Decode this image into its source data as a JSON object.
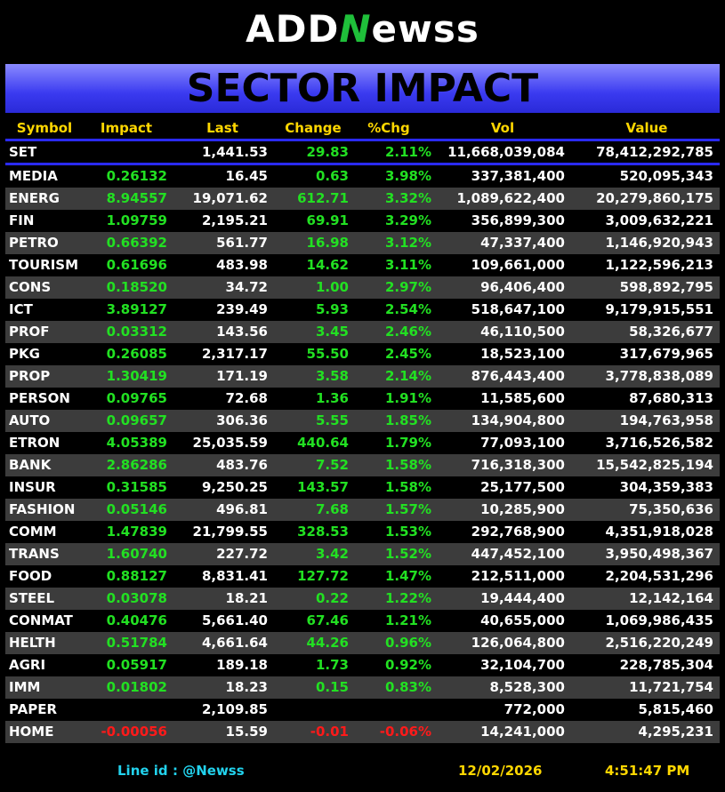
{
  "logo": {
    "prefix": "ADD",
    "mark": "N",
    "suffix": "ewss"
  },
  "banner": "SECTOR IMPACT",
  "columns": [
    "Symbol",
    "Impact",
    "Last",
    "Change",
    "%Chg",
    "Vol",
    "Value"
  ],
  "index_row": [
    "SET",
    null,
    "1,441.53",
    "29.83",
    "2.11%",
    "11,668,039,084",
    "78,412,292,785"
  ],
  "rows": [
    [
      "MEDIA",
      "0.26132",
      "16.45",
      "0.63",
      "3.98%",
      "337,381,400",
      "520,095,343"
    ],
    [
      "ENERG",
      "8.94557",
      "19,071.62",
      "612.71",
      "3.32%",
      "1,089,622,400",
      "20,279,860,175"
    ],
    [
      "FIN",
      "1.09759",
      "2,195.21",
      "69.91",
      "3.29%",
      "356,899,300",
      "3,009,632,221"
    ],
    [
      "PETRO",
      "0.66392",
      "561.77",
      "16.98",
      "3.12%",
      "47,337,400",
      "1,146,920,943"
    ],
    [
      "TOURISM",
      "0.61696",
      "483.98",
      "14.62",
      "3.11%",
      "109,661,000",
      "1,122,596,213"
    ],
    [
      "CONS",
      "0.18520",
      "34.72",
      "1.00",
      "2.97%",
      "96,406,400",
      "598,892,795"
    ],
    [
      "ICT",
      "3.89127",
      "239.49",
      "5.93",
      "2.54%",
      "518,647,100",
      "9,179,915,551"
    ],
    [
      "PROF",
      "0.03312",
      "143.56",
      "3.45",
      "2.46%",
      "46,110,500",
      "58,326,677"
    ],
    [
      "PKG",
      "0.26085",
      "2,317.17",
      "55.50",
      "2.45%",
      "18,523,100",
      "317,679,965"
    ],
    [
      "PROP",
      "1.30419",
      "171.19",
      "3.58",
      "2.14%",
      "876,443,400",
      "3,778,838,089"
    ],
    [
      "PERSON",
      "0.09765",
      "72.68",
      "1.36",
      "1.91%",
      "11,585,600",
      "87,680,313"
    ],
    [
      "AUTO",
      "0.09657",
      "306.36",
      "5.55",
      "1.85%",
      "134,904,800",
      "194,763,958"
    ],
    [
      "ETRON",
      "4.05389",
      "25,035.59",
      "440.64",
      "1.79%",
      "77,093,100",
      "3,716,526,582"
    ],
    [
      "BANK",
      "2.86286",
      "483.76",
      "7.52",
      "1.58%",
      "716,318,300",
      "15,542,825,194"
    ],
    [
      "INSUR",
      "0.31585",
      "9,250.25",
      "143.57",
      "1.58%",
      "25,177,500",
      "304,359,383"
    ],
    [
      "FASHION",
      "0.05146",
      "496.81",
      "7.68",
      "1.57%",
      "10,285,900",
      "75,350,636"
    ],
    [
      "COMM",
      "1.47839",
      "21,799.55",
      "328.53",
      "1.53%",
      "292,768,900",
      "4,351,918,028"
    ],
    [
      "TRANS",
      "1.60740",
      "227.72",
      "3.42",
      "1.52%",
      "447,452,100",
      "3,950,498,367"
    ],
    [
      "FOOD",
      "0.88127",
      "8,831.41",
      "127.72",
      "1.47%",
      "212,511,000",
      "2,204,531,296"
    ],
    [
      "STEEL",
      "0.03078",
      "18.21",
      "0.22",
      "1.22%",
      "19,444,400",
      "12,142,164"
    ],
    [
      "CONMAT",
      "0.40476",
      "5,661.40",
      "67.46",
      "1.21%",
      "40,655,000",
      "1,069,986,435"
    ],
    [
      "HELTH",
      "0.51784",
      "4,661.64",
      "44.26",
      "0.96%",
      "126,064,800",
      "2,516,220,249"
    ],
    [
      "AGRI",
      "0.05917",
      "189.18",
      "1.73",
      "0.92%",
      "32,104,700",
      "228,785,304"
    ],
    [
      "IMM",
      "0.01802",
      "18.23",
      "0.15",
      "0.83%",
      "8,528,300",
      "11,721,754"
    ],
    [
      "PAPER",
      null,
      "2,109.85",
      null,
      null,
      "772,000",
      "5,815,460"
    ],
    [
      "HOME",
      "-0.00056",
      "15.59",
      "-0.01",
      "-0.06%",
      "14,241,000",
      "4,295,231"
    ]
  ],
  "footer": {
    "line_label": "Line id",
    "line_value": ": @Newss",
    "date": "12/02/2026",
    "time": "4:51:47 PM"
  }
}
